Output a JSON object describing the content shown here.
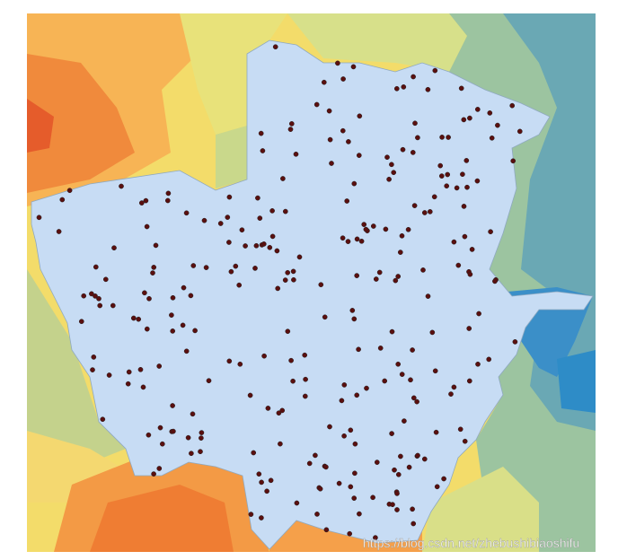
{
  "watermark": "https://blog.csdn.net/zhebushibiaoshifu"
}
